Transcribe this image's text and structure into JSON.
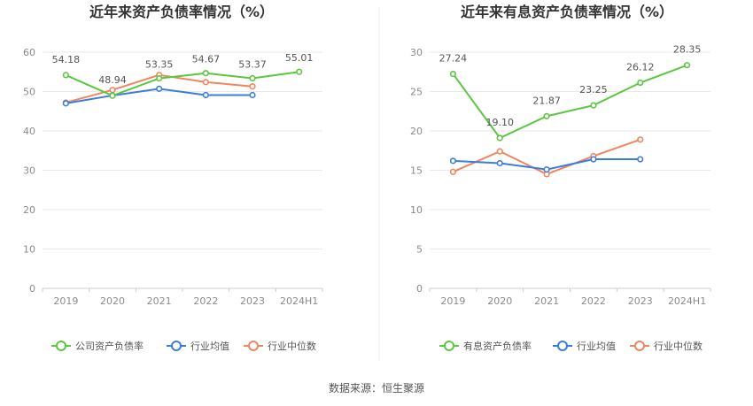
{
  "source": "数据来源：恒生聚源",
  "chart_data": [
    {
      "type": "line",
      "title": "近年来资产负债率情况（%）",
      "categories": [
        "2019",
        "2020",
        "2021",
        "2022",
        "2023",
        "2024H1"
      ],
      "ylim": [
        0,
        60
      ],
      "yticks": [
        "0",
        "10",
        "20",
        "30",
        "40",
        "50",
        "60"
      ],
      "grid": true,
      "legend_position": "bottom",
      "series": [
        {
          "name": "公司资产负债率",
          "color": "#5ac73e",
          "values": [
            54.18,
            48.94,
            53.35,
            54.67,
            53.37,
            55.01
          ],
          "labels": [
            "54.18",
            "48.94",
            "53.35",
            "54.67",
            "53.37",
            "55.01"
          ]
        },
        {
          "name": "行业均值",
          "color": "#3b7ddd",
          "values": [
            47.0,
            49.0,
            50.7,
            49.1,
            49.1,
            null
          ]
        },
        {
          "name": "行业中位数",
          "color": "#f0865d",
          "values": [
            47.2,
            50.4,
            54.2,
            52.4,
            51.3,
            null
          ]
        }
      ]
    },
    {
      "type": "line",
      "title": "近年来有息资产负债率情况（%）",
      "categories": [
        "2019",
        "2020",
        "2021",
        "2022",
        "2023",
        "2024H1"
      ],
      "ylim": [
        0,
        30
      ],
      "yticks": [
        "0",
        "5",
        "10",
        "15",
        "20",
        "25",
        "30"
      ],
      "grid": true,
      "legend_position": "bottom",
      "series": [
        {
          "name": "有息资产负债率",
          "color": "#5ac73e",
          "values": [
            27.24,
            19.1,
            21.87,
            23.25,
            26.12,
            28.35
          ],
          "labels": [
            "27.24",
            "19.10",
            "21.87",
            "23.25",
            "26.12",
            "28.35"
          ]
        },
        {
          "name": "行业均值",
          "color": "#3b7ddd",
          "values": [
            16.2,
            15.9,
            15.1,
            16.4,
            16.4,
            null
          ]
        },
        {
          "name": "行业中位数",
          "color": "#f0865d",
          "values": [
            14.8,
            17.4,
            14.5,
            16.8,
            18.9,
            null
          ]
        }
      ]
    }
  ]
}
